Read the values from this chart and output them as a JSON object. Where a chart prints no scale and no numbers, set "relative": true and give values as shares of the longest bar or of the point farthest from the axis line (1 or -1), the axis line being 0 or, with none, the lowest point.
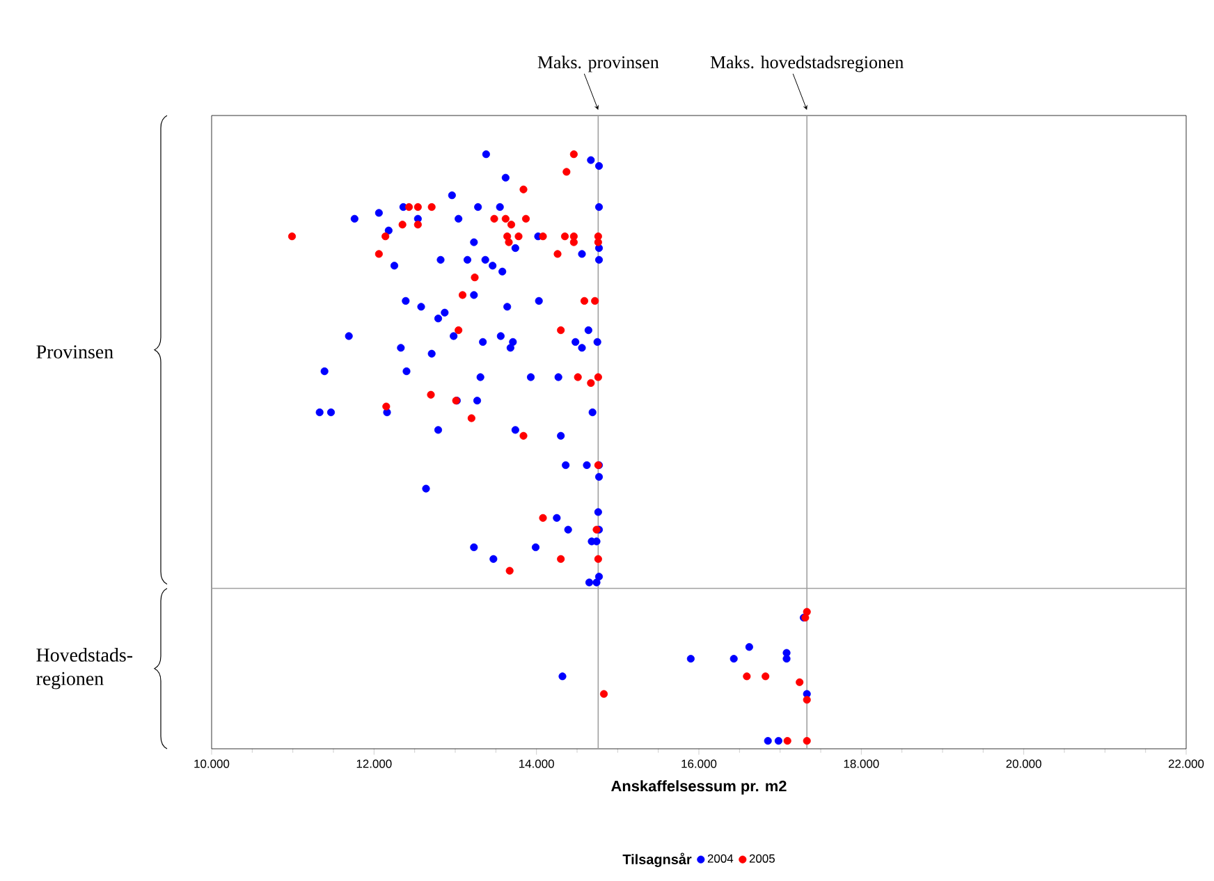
{
  "chart_data": {
    "type": "scatter",
    "xlabel": "Anskaffelsessum pr. m2",
    "legend_title": "Tilsagnsår",
    "legend": "bottom",
    "marker": "circle",
    "relative": true,
    "xlim": [
      10000,
      22000
    ],
    "xticks": [
      {
        "value": 10000,
        "label": "10.000"
      },
      {
        "value": 12000,
        "label": "12.000"
      },
      {
        "value": 14000,
        "label": "14.000"
      },
      {
        "value": 16000,
        "label": "16.000"
      },
      {
        "value": 18000,
        "label": "18.000"
      },
      {
        "value": 20000,
        "label": "20.000"
      },
      {
        "value": 22000,
        "label": "22.000"
      }
    ],
    "series": [
      {
        "name": "2004",
        "color": "#0000ff",
        "x": [
          13380,
          14670,
          14770,
          13620,
          12960,
          14770,
          11760,
          12060,
          12360,
          12540,
          13280,
          13550,
          13040,
          12180,
          13230,
          14020,
          13740,
          14770,
          14770,
          14560,
          12250,
          12820,
          13150,
          13370,
          13460,
          13580,
          13230,
          12390,
          12580,
          12870,
          12790,
          13640,
          14030,
          11690,
          12980,
          13560,
          13710,
          14480,
          14640,
          14750,
          14560,
          12330,
          12710,
          13340,
          13680,
          11390,
          12400,
          13310,
          13930,
          14270,
          11330,
          11470,
          12160,
          13020,
          13270,
          12790,
          13740,
          14690,
          14300,
          14360,
          14620,
          14770,
          14770,
          12640,
          14760,
          14250,
          14390,
          14770,
          14680,
          14740,
          13230,
          13470,
          13990,
          14770,
          14650,
          14740,
          17290,
          15900,
          16430,
          16620,
          17080,
          17080,
          14320,
          17330,
          16850,
          16980
        ],
        "values": [
          1.0,
          0.99,
          0.98,
          0.96,
          0.93,
          0.91,
          0.89,
          0.9,
          0.91,
          0.89,
          0.91,
          0.91,
          0.89,
          0.87,
          0.85,
          0.86,
          0.84,
          0.84,
          0.82,
          0.83,
          0.81,
          0.82,
          0.82,
          0.82,
          0.81,
          0.8,
          0.76,
          0.75,
          0.74,
          0.73,
          0.72,
          0.74,
          0.75,
          0.69,
          0.69,
          0.69,
          0.68,
          0.68,
          0.7,
          0.68,
          0.67,
          0.67,
          0.66,
          0.68,
          0.67,
          0.63,
          0.63,
          0.62,
          0.62,
          0.62,
          0.56,
          0.56,
          0.56,
          0.58,
          0.58,
          0.53,
          0.53,
          0.56,
          0.52,
          0.47,
          0.47,
          0.47,
          0.45,
          0.43,
          0.39,
          0.38,
          0.36,
          0.36,
          0.34,
          0.34,
          0.33,
          0.31,
          0.33,
          0.28,
          0.27,
          0.27,
          0.21,
          0.14,
          0.14,
          0.16,
          0.15,
          0.14,
          0.11,
          0.08,
          0.0,
          0.0
        ]
      },
      {
        "name": "2005",
        "color": "#ff0000",
        "x": [
          14460,
          14370,
          13840,
          12430,
          12540,
          12710,
          12350,
          12540,
          13480,
          13620,
          13690,
          13870,
          10990,
          12140,
          12060,
          13640,
          13660,
          13780,
          14080,
          14350,
          14460,
          14760,
          14460,
          14760,
          14260,
          13240,
          13090,
          14590,
          14720,
          13040,
          14300,
          14510,
          14670,
          14760,
          12700,
          13010,
          12150,
          13200,
          13840,
          14760,
          14080,
          14740,
          14300,
          14760,
          13670,
          17330,
          17310,
          16590,
          16820,
          17240,
          14830,
          17330,
          17090,
          17330
        ],
        "values": [
          1.0,
          0.97,
          0.94,
          0.91,
          0.91,
          0.91,
          0.88,
          0.88,
          0.89,
          0.89,
          0.88,
          0.89,
          0.86,
          0.86,
          0.83,
          0.86,
          0.85,
          0.86,
          0.86,
          0.86,
          0.86,
          0.86,
          0.85,
          0.85,
          0.83,
          0.79,
          0.76,
          0.75,
          0.75,
          0.7,
          0.7,
          0.62,
          0.61,
          0.62,
          0.59,
          0.58,
          0.57,
          0.55,
          0.52,
          0.47,
          0.38,
          0.36,
          0.31,
          0.31,
          0.29,
          0.22,
          0.21,
          0.11,
          0.11,
          0.1,
          0.08,
          0.07,
          0.0,
          0.0
        ]
      }
    ],
    "ref_lines": [
      {
        "axis": "x",
        "value": 14760,
        "label": "Maks. provinsen",
        "color": "#a0a0a0"
      },
      {
        "axis": "x",
        "value": 17330,
        "label": "Maks. hovedstadsregionen",
        "color": "#a0a0a0"
      },
      {
        "axis": "y",
        "value": 0.26,
        "color": "#a0a0a0"
      }
    ],
    "annotations": [
      "Provinsen",
      "Hovedstads-regionen"
    ]
  }
}
